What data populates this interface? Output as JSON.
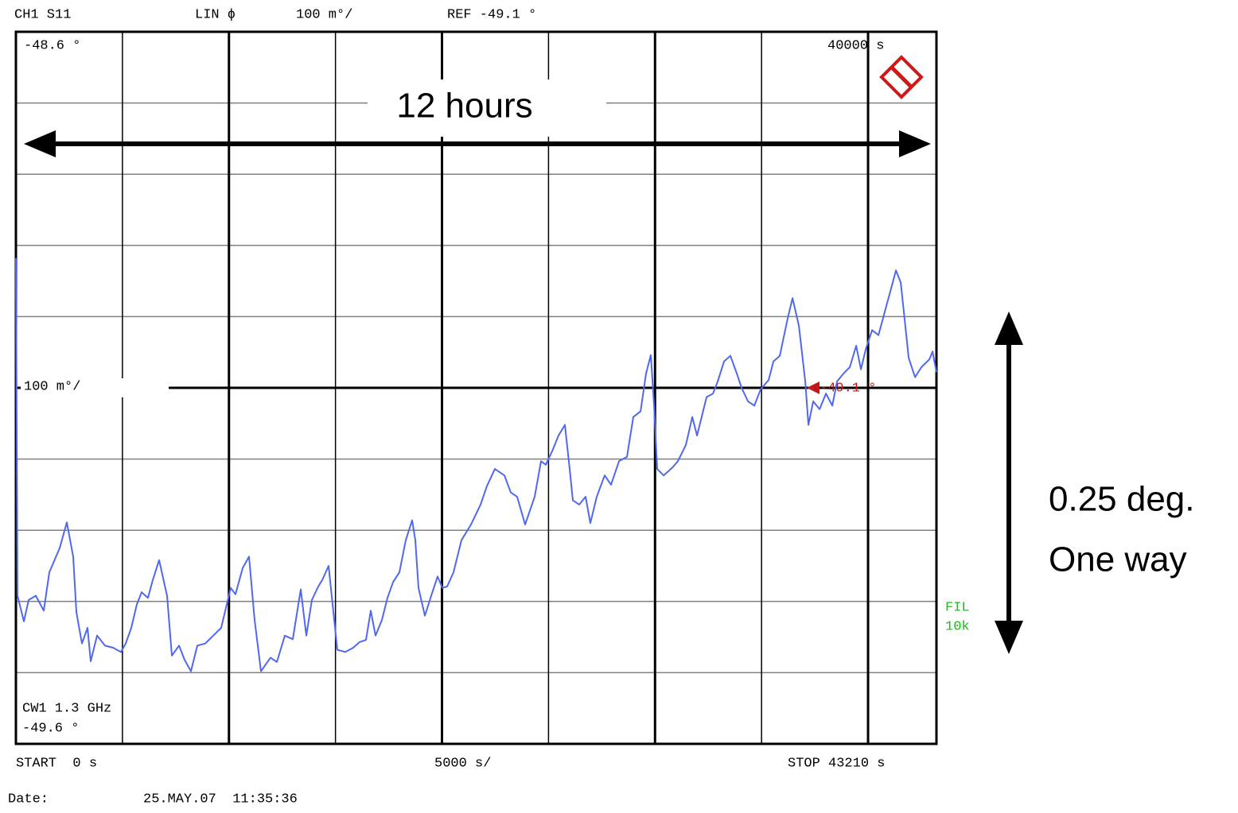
{
  "chart_data": {
    "type": "line",
    "channel": "CH1 S11",
    "format": "LIN ϕ",
    "scale": "100 m°/",
    "ref_label": "REF -49.1 °",
    "ref_value": -49.1,
    "top_value_label": "-48.6 °",
    "marker_time_label": "40000 s",
    "ref_marker_label": "-49.1 °",
    "cw_label": "CW1 1.3 GHz",
    "bottom_value_label": "-49.6 °",
    "start_label": "START  0 s",
    "x_div_label": "5000 s/",
    "stop_label": "STOP 43210 s",
    "filter_label": [
      "FIL",
      "10k"
    ],
    "date_label": "Date:",
    "date": "25.MAY.07  11:35:36",
    "annotations": [
      "12 hours",
      "0.25 deg.",
      "One way"
    ],
    "xlim": [
      0,
      43210
    ],
    "ylim": [
      -49.6,
      -48.6
    ],
    "xticks": [
      0,
      5000,
      10000,
      15000,
      20000,
      25000,
      30000,
      35000,
      40000
    ],
    "yticks": [
      -49.6,
      -49.5,
      -49.4,
      -49.3,
      -49.2,
      -49.1,
      -49.0,
      -48.9,
      -48.8,
      -48.7,
      -48.6
    ],
    "grid": true,
    "series": [
      {
        "color": "#5068f0",
        "x": [
          0,
          75,
          373,
          598,
          934,
          1307,
          1569,
          2054,
          2390,
          2689,
          2839,
          3100,
          3362,
          3511,
          3810,
          4183,
          4557,
          4930,
          5154,
          5416,
          5677,
          5901,
          6200,
          6424,
          6723,
          7096,
          7320,
          7657,
          7918,
          8217,
          8516,
          8889,
          9263,
          9636,
          10084,
          10308,
          10644,
          10943,
          11204,
          11503,
          11951,
          12250,
          12624,
          12997,
          13371,
          13632,
          13894,
          14192,
          14379,
          14678,
          14865,
          15088,
          15462,
          15835,
          16134,
          16433,
          16657,
          16881,
          17180,
          17441,
          17703,
          18001,
          18300,
          18599,
          18748,
          18898,
          19197,
          19495,
          19794,
          20018,
          20242,
          20541,
          20915,
          21363,
          21811,
          22110,
          22483,
          22931,
          23230,
          23529,
          23903,
          24351,
          24650,
          24874,
          25173,
          25471,
          25770,
          25994,
          26144,
          26443,
          26741,
          26965,
          27264,
          27638,
          27937,
          28310,
          28684,
          28982,
          29319,
          29580,
          29804,
          29954,
          30103,
          30402,
          30813,
          31074,
          31448,
          31747,
          31971,
          32419,
          32718,
          32942,
          33240,
          33539,
          33838,
          34062,
          34361,
          34660,
          34959,
          35332,
          35556,
          35855,
          36229,
          36453,
          36752,
          37050,
          37200,
          37424,
          37723,
          38022,
          38321,
          38545,
          38843,
          39142,
          39441,
          39665,
          39889,
          40188,
          40487,
          40786,
          41084,
          41309,
          41533,
          41906,
          42205,
          42504,
          42877,
          43027,
          43210
        ],
        "values": [
          -48.918,
          -49.392,
          -49.428,
          -49.398,
          -49.392,
          -49.413,
          -49.359,
          -49.325,
          -49.289,
          -49.337,
          -49.415,
          -49.459,
          -49.437,
          -49.484,
          -49.448,
          -49.462,
          -49.465,
          -49.471,
          -49.459,
          -49.437,
          -49.404,
          -49.387,
          -49.395,
          -49.37,
          -49.342,
          -49.392,
          -49.476,
          -49.462,
          -49.482,
          -49.498,
          -49.462,
          -49.459,
          -49.448,
          -49.437,
          -49.381,
          -49.39,
          -49.353,
          -49.337,
          -49.426,
          -49.498,
          -49.479,
          -49.485,
          -49.448,
          -49.453,
          -49.383,
          -49.448,
          -49.398,
          -49.379,
          -49.37,
          -49.35,
          -49.404,
          -49.468,
          -49.471,
          -49.465,
          -49.457,
          -49.454,
          -49.413,
          -49.448,
          -49.426,
          -49.395,
          -49.373,
          -49.359,
          -49.314,
          -49.286,
          -49.314,
          -49.381,
          -49.42,
          -49.392,
          -49.365,
          -49.381,
          -49.379,
          -49.359,
          -49.314,
          -49.292,
          -49.264,
          -49.238,
          -49.214,
          -49.223,
          -49.247,
          -49.253,
          -49.292,
          -49.253,
          -49.203,
          -49.208,
          -49.189,
          -49.167,
          -49.152,
          -49.214,
          -49.258,
          -49.264,
          -49.253,
          -49.29,
          -49.253,
          -49.223,
          -49.236,
          -49.203,
          -49.197,
          -49.141,
          -49.133,
          -49.08,
          -49.054,
          -49.125,
          -49.214,
          -49.223,
          -49.212,
          -49.203,
          -49.18,
          -49.141,
          -49.167,
          -49.113,
          -49.108,
          -49.091,
          -49.063,
          -49.055,
          -49.08,
          -49.1,
          -49.119,
          -49.125,
          -49.102,
          -49.089,
          -49.063,
          -49.055,
          -49.002,
          -48.974,
          -49.013,
          -49.091,
          -49.152,
          -49.119,
          -49.13,
          -49.108,
          -49.125,
          -49.091,
          -49.08,
          -49.071,
          -49.041,
          -49.074,
          -49.046,
          -49.019,
          -49.026,
          -48.993,
          -48.96,
          -48.935,
          -48.952,
          -49.058,
          -49.085,
          -49.071,
          -49.06,
          -49.049,
          -49.078
        ]
      }
    ]
  }
}
